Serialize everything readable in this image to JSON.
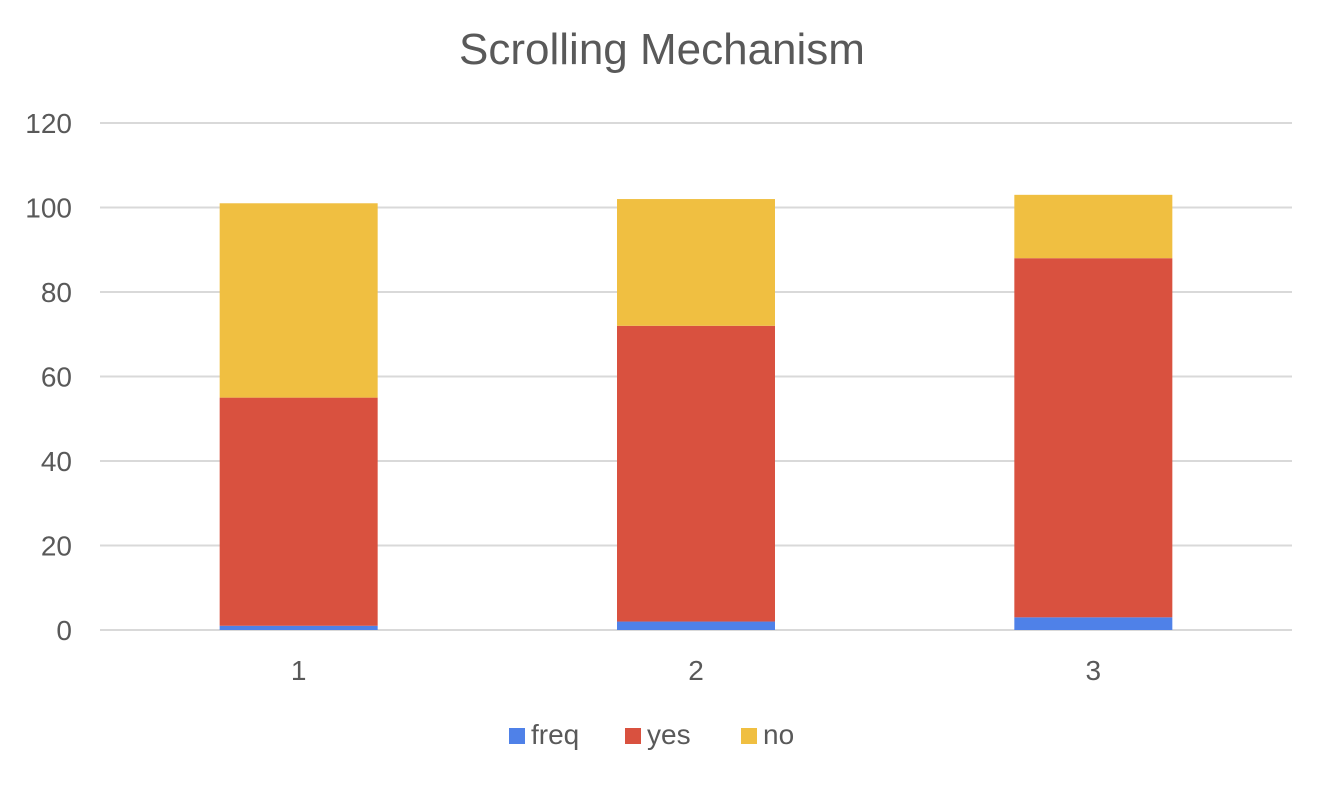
{
  "chart_data": {
    "type": "bar",
    "stacked": true,
    "title": "Scrolling Mechanism",
    "xlabel": "",
    "ylabel": "",
    "categories": [
      "1",
      "2",
      "3"
    ],
    "series": [
      {
        "name": "freq",
        "color": "#4f81e8",
        "values": [
          1,
          2,
          3
        ]
      },
      {
        "name": "yes",
        "color": "#d9513f",
        "values": [
          54,
          70,
          85
        ]
      },
      {
        "name": "no",
        "color": "#f0bf41",
        "values": [
          46,
          30,
          15
        ]
      }
    ],
    "ylim": [
      0,
      120
    ],
    "yticks": [
      "0",
      "20",
      "40",
      "60",
      "80",
      "100",
      "120"
    ],
    "grid": true,
    "legend": "bottom"
  }
}
